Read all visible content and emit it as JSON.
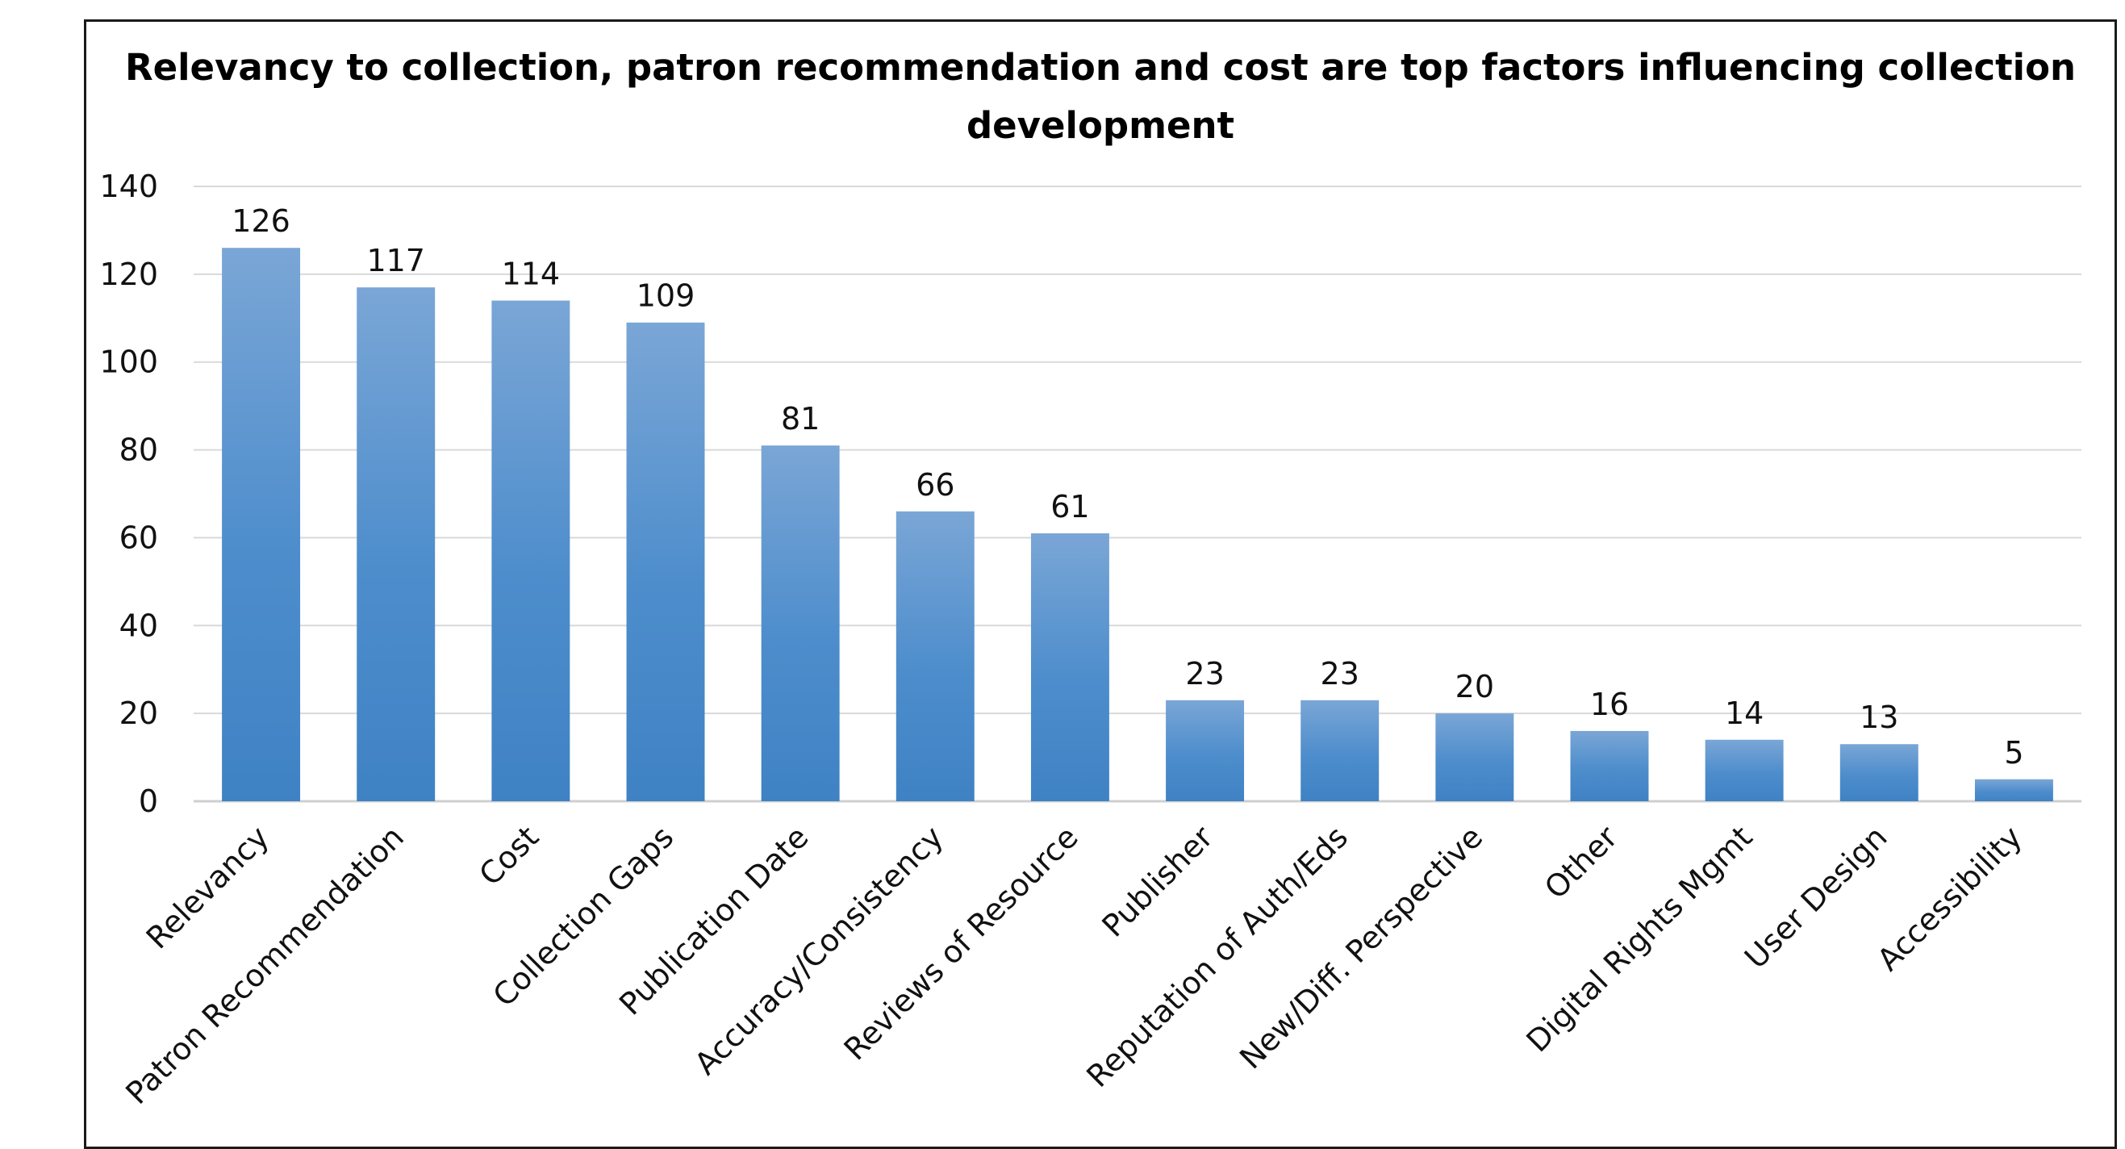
{
  "chart_data": {
    "type": "bar",
    "title": "Relevancy to collection, patron recommendation and cost are top factors influencing collection development",
    "categories": [
      "Relevancy",
      "Patron Recommendation",
      "Cost",
      "Collection Gaps",
      "Publication Date",
      "Accuracy/Consistency",
      "Reviews of Resource",
      "Publisher",
      "Reputation of Auth/Eds",
      "New/Diff. Perspective",
      "Other",
      "Digital Rights Mgmt",
      "User Design",
      "Accessibility"
    ],
    "values": [
      126,
      117,
      114,
      109,
      81,
      66,
      61,
      23,
      23,
      20,
      16,
      14,
      13,
      5
    ],
    "xlabel": "",
    "ylabel": "",
    "ylim": [
      0,
      140
    ],
    "yticks": [
      0,
      20,
      40,
      60,
      80,
      100,
      120,
      140
    ],
    "grid": true,
    "legend": "none",
    "data_labels": true,
    "colors": {
      "bar_top": "#7aa6d6",
      "bar_bottom": "#3f82c4",
      "grid": "#d9d9d9"
    }
  }
}
